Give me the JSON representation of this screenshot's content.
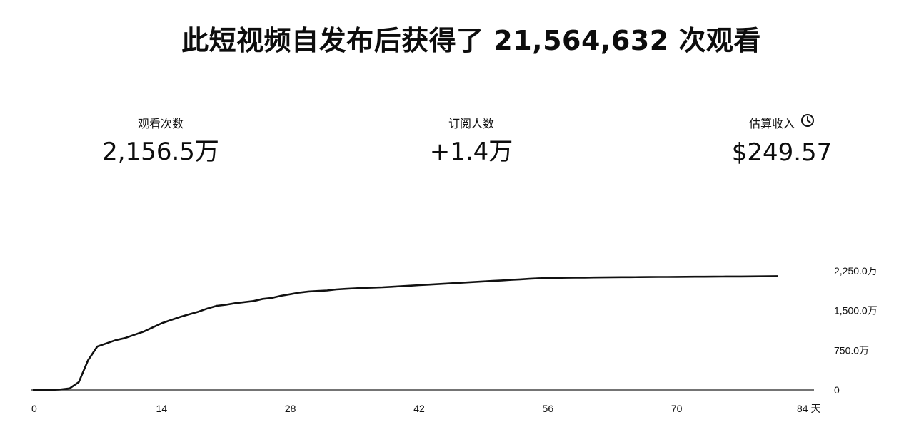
{
  "header": {
    "title": "此短视频自发布后获得了 21,564,632 次观看"
  },
  "metrics": {
    "views": {
      "label": "观看次数",
      "value": "2,156.5万"
    },
    "subscribers": {
      "label": "订阅人数",
      "value": "+1.4万"
    },
    "revenue": {
      "label": "估算收入",
      "value": "$249.57",
      "icon": "clock-icon"
    }
  },
  "chart_data": {
    "type": "line",
    "xlabel": "",
    "ylabel": "",
    "x_unit_label": "天",
    "x_ticks": [
      "0",
      "14",
      "28",
      "42",
      "56",
      "70",
      "84 天"
    ],
    "x_tick_values": [
      0,
      14,
      28,
      42,
      56,
      70,
      84
    ],
    "y_ticks": [
      "0",
      "750.0万",
      "1,500.0万",
      "2,250.0万"
    ],
    "y_tick_values": [
      0,
      750,
      1500,
      2250
    ],
    "y_unit": "万",
    "xlim": [
      0,
      84
    ],
    "ylim": [
      0,
      2250
    ],
    "grid": false,
    "series": [
      {
        "x": [
          0,
          1,
          2,
          3,
          4,
          5,
          6,
          7,
          8,
          9,
          10,
          11,
          12,
          13,
          14,
          15,
          16,
          17,
          18,
          19,
          20,
          21,
          22,
          23,
          24,
          25,
          26,
          27,
          28,
          29,
          30,
          31,
          32,
          33,
          34,
          35,
          36,
          37,
          38,
          39,
          40,
          41,
          42,
          43,
          44,
          45,
          46,
          47,
          48,
          49,
          50,
          51,
          52,
          53,
          54,
          55,
          56,
          57,
          58,
          59,
          60,
          61,
          62,
          63,
          64,
          65,
          66,
          67,
          68,
          69,
          70,
          71,
          72,
          73,
          74,
          75,
          76,
          77,
          78,
          79,
          80,
          81
        ],
        "values": [
          0,
          0,
          0,
          10,
          30,
          150,
          560,
          820,
          880,
          940,
          980,
          1040,
          1100,
          1180,
          1260,
          1320,
          1380,
          1430,
          1480,
          1540,
          1590,
          1610,
          1640,
          1660,
          1680,
          1720,
          1740,
          1780,
          1810,
          1840,
          1860,
          1870,
          1880,
          1900,
          1910,
          1920,
          1930,
          1935,
          1940,
          1950,
          1960,
          1970,
          1980,
          1990,
          2000,
          2010,
          2020,
          2030,
          2040,
          2050,
          2060,
          2070,
          2080,
          2090,
          2100,
          2110,
          2115,
          2118,
          2120,
          2122,
          2124,
          2126,
          2128,
          2130,
          2131,
          2132,
          2133,
          2134,
          2135,
          2136,
          2137,
          2138,
          2139,
          2140,
          2141,
          2142,
          2143,
          2144,
          2145,
          2146,
          2148,
          2150
        ]
      }
    ]
  }
}
